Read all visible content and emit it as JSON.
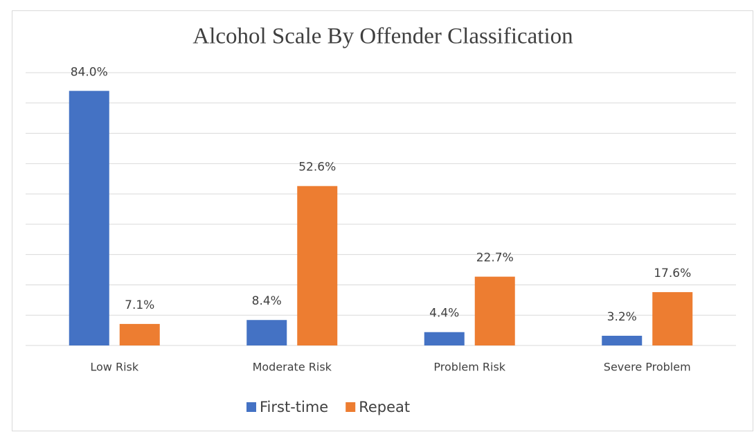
{
  "chart_data": {
    "type": "bar",
    "title": "Alcohol Scale By Offender Classification",
    "categories": [
      "Low Risk",
      "Moderate Risk",
      "Problem Risk",
      "Severe Problem"
    ],
    "series": [
      {
        "name": "First-time",
        "color": "#4472c4",
        "values": [
          84.0,
          8.4,
          4.4,
          3.2
        ],
        "value_labels": [
          "84.0%",
          "8.4%",
          "4.4%",
          "3.2%"
        ]
      },
      {
        "name": "Repeat",
        "color": "#ed7d31",
        "values": [
          7.1,
          52.6,
          22.7,
          17.6
        ],
        "value_labels": [
          "7.1%",
          "52.6%",
          "22.7%",
          "17.6%"
        ]
      }
    ],
    "ylim": [
      0,
      90
    ],
    "yticks": [
      0,
      10,
      20,
      30,
      40,
      50,
      60,
      70,
      80,
      90
    ],
    "grid": true,
    "legend": "bottom"
  }
}
